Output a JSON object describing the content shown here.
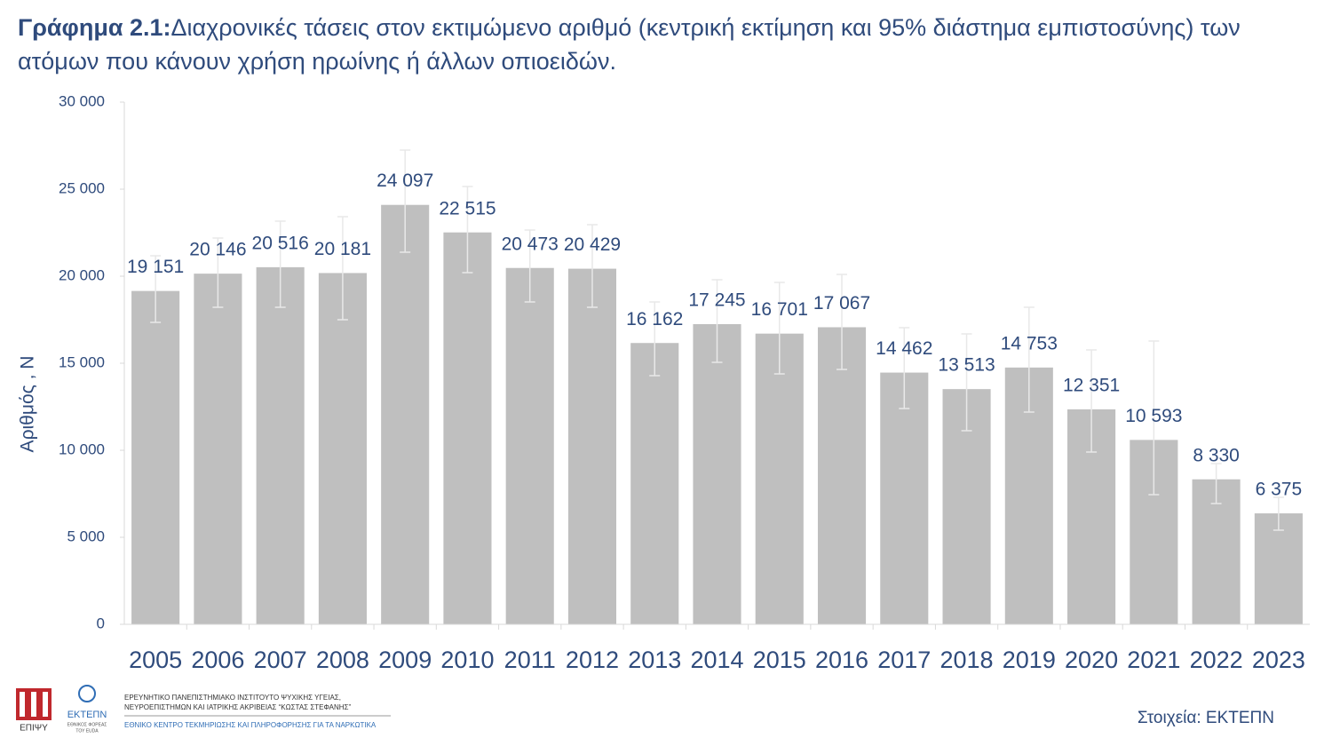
{
  "chart_data": {
    "type": "bar",
    "title_prefix": "Γράφημα 2.1:",
    "title": "Διαχρονικές τάσεις στον εκτιμώμενο αριθμό (κεντρική εκτίμηση και 95% διάστημα εμπιστοσύνης) των ατόμων που κάνουν χρήση ηρωίνης ή άλλων οπιοειδών.",
    "y_label": "Αριθμός , N",
    "source": "Στοιχεία: ΕΚΤΕΠΝ",
    "categories": [
      "2005",
      "2006",
      "2007",
      "2008",
      "2009",
      "2010",
      "2011",
      "2012",
      "2013",
      "2014",
      "2015",
      "2016",
      "2017",
      "2018",
      "2019",
      "2020",
      "2021",
      "2022",
      "2023"
    ],
    "values": [
      19151,
      20146,
      20516,
      20181,
      24097,
      22515,
      20473,
      20429,
      16162,
      17245,
      16701,
      17067,
      14462,
      13513,
      14753,
      12351,
      10593,
      8330,
      6375
    ],
    "value_labels": [
      "19 151",
      "20 146",
      "20 516",
      "20 181",
      "24 097",
      "22 515",
      "20 473",
      "20 429",
      "16 162",
      "17 245",
      "16 701",
      "17 067",
      "14 462",
      "13 513",
      "14 753",
      "12 351",
      "10 593",
      "8 330",
      "6 375"
    ],
    "ci_low": [
      17347,
      18214,
      18214,
      17500,
      21378,
      20204,
      18520,
      18214,
      14286,
      15051,
      14388,
      14643,
      12398,
      11122,
      12194,
      9898,
      7449,
      6939,
      5408
    ],
    "ci_high": [
      21173,
      22194,
      23163,
      23418,
      27245,
      25153,
      22653,
      22959,
      18520,
      19796,
      19643,
      20102,
      17041,
      16684,
      18214,
      15765,
      16276,
      9235,
      7296
    ],
    "color": "#bfbfbf",
    "ylim": [
      0,
      30000
    ],
    "yticks": [
      0,
      {
        "value": 5000,
        "label": "5 000"
      },
      {
        "value": 10000,
        "label": "10 000"
      },
      {
        "value": 15000,
        "label": "15 000"
      },
      {
        "value": 20000,
        "label": "20 000"
      },
      {
        "value": 25000,
        "label": "25 000"
      },
      {
        "value": 30000,
        "label": "30 000"
      }
    ],
    "grid": false
  },
  "footer": {
    "logo1": "ΕΠΙΨΥ",
    "logo2": "ΕΚΤΕΠΝ",
    "logo2_sub1": "ΕΘΝΙΚΟΣ ΦΟΡΕΑΣ",
    "logo2_sub2": "ΤΟΥ EUDA",
    "institute1": "ΕΡΕΥΝΗΤΙΚΟ ΠΑΝΕΠΙΣΤΗΜΙΑΚΟ ΙΝΣΤΙΤΟΥΤΟ ΨΥΧΙΚΗΣ ΥΓΕΙΑΣ,",
    "institute2": "ΝΕΥΡΟΕΠΙΣΤΗΜΩΝ ΚΑΙ ΙΑΤΡΙΚΗΣ ΑΚΡΙΒΕΙΑΣ “ΚΩΣΤΑΣ ΣΤΕΦΑΝΗΣ”",
    "institute3": "ΕΘΝΙΚΟ ΚΕΝΤΡΟ ΤΕΚΜΗΡΙΩΣΗΣ ΚΑΙ ΠΛΗΡΟΦΟΡΗΣΗΣ ΓΙΑ ΤΑ ΝΑΡΚΩΤΙΚΑ"
  }
}
